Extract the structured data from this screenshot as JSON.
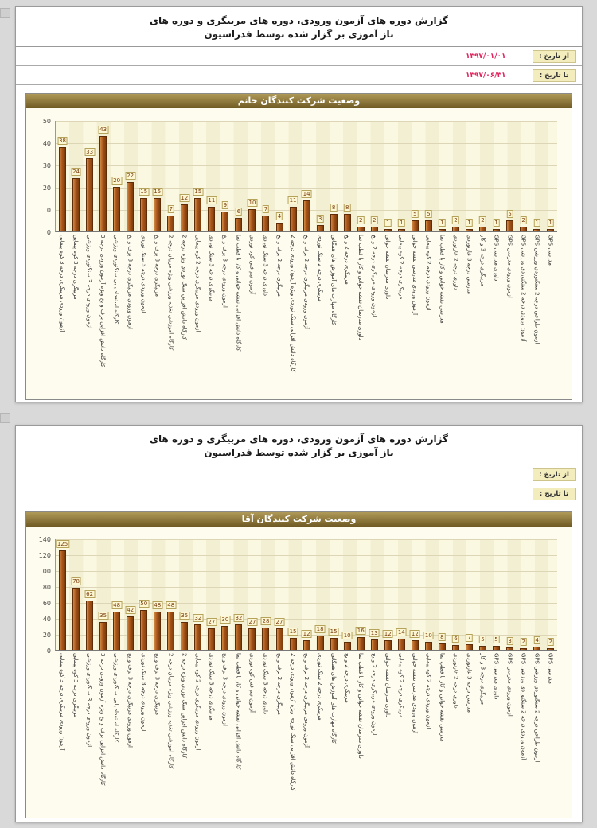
{
  "report": {
    "title_line1": "گزارش دوره های آزمون ورودی، دوره های مربیگری و دوره های",
    "title_line2": "باز آموزی بر گزار شده توسط فدراسیون",
    "from_label": "از تاریخ :",
    "to_label": "تا تاریخ :"
  },
  "pages": [
    {
      "from_date": "۱۳۹۷/۰۱/۰۱",
      "to_date": "۱۳۹۷/۰۶/۳۱"
    },
    {
      "from_date": "",
      "to_date": ""
    }
  ],
  "colors": {
    "bar": "#A9541A",
    "bar_border": "#5E2C06",
    "chart_title_bg": "#7A6127",
    "date_value": "#E0245E",
    "plot_bg": "#FBF8E2"
  },
  "chart_data": [
    {
      "type": "bar",
      "title": "وضعیت شرکت کنندگان خانم",
      "xlabel": "",
      "ylabel": "",
      "ylim": [
        0,
        50
      ],
      "yticks": [
        0,
        10,
        20,
        30,
        40,
        50
      ],
      "grid": true,
      "legend": "none",
      "value_labels": true,
      "categories": [
        "آزمون ورودی مربیگری درجه 3 کوه پیمایی",
        "مربیگری درجه 3 کوه پیمایی",
        "آزمون ورودی درجه 3 سنگنوردی ورزشی",
        "کارگاه دانش افزایی برف و یخ ویژه آزمون ورودی درجه 3",
        "کارگاه استعداد یابی سنگنوردی ورزشی",
        "آزمون ورودی مربیگری درجه 3 برف و یخ",
        "آزمون ورودی درجه 3 سنگ نوردی",
        "مربیگری درجه 3 برف و یخ",
        "کارگاه آموزشی تغذیه ورزشی ویژه مربیان درجه 2",
        "کارگاه دانش افزایی سنگ نوردی ویژه درجه 2",
        "آزمون ورودی مربیگری درجه 2 کوه پیمایی",
        "مربیگری درجه 3 سنگ نوردی",
        "آزمون ورودی درجه 3 برف و یخ",
        "کارگاه دانش افزایی نقشه خوانی و کار با قطب نما",
        "آزمون نیم فنی کوه نوردی",
        "داوری درجه 3 سنگ نوردی",
        "مربیگری درجه 2 برف و یخ",
        "کارگاه دانش افزایی سنگ نوردی ویژه آزمون ورودی درجه 2",
        "آزمون ورودی مربیگری درجه 2 برف و یخ",
        "مربیگری درجه 2 سنگ نوردی",
        "کارگاه مهارت های آموزش های همگانی",
        "مربیگری درجه 2 و یخ",
        "داوری مدرسان نقشه خوانی و کار با قطب نما",
        "آزمون ورودی مربیگری درجه 2 و یخ",
        "داوری مدرسان نقشه خوانی",
        "مربیگری درجه 2 کوه پیمایی",
        "آزمون ورودی مدرسی نقشه خوانی",
        "آزمون ورودی درجه 2 کوه پیمایی",
        "مدرسی نقشه خوانی و کار با قطب نما",
        "داوری درجه 2 غارنوردی",
        "مدرسی درجه 3 غارنوردی",
        "مربیگری درجه 3 و کار",
        "GPS داوری مدرسی",
        "GPS آزمون ورودی مدرسی",
        "GPS آزمون ورودی درجه 2 سنگنوردی ورزشی",
        "GPS آزمون طراحی درجه 2 سنگنوردی ورزشی",
        "GPS مدرسی"
      ],
      "values": [
        38,
        24,
        33,
        43,
        20,
        22,
        15,
        15,
        7,
        12,
        15,
        11,
        9,
        6,
        10,
        7,
        4,
        11,
        14,
        3,
        8,
        8,
        2,
        2,
        1,
        1,
        5,
        5,
        1,
        2,
        1,
        2,
        1,
        5,
        2,
        1,
        1
      ]
    },
    {
      "type": "bar",
      "title": "وضعیت شرکت کنندگان آقا",
      "xlabel": "",
      "ylabel": "",
      "ylim": [
        0,
        140
      ],
      "yticks": [
        0,
        20,
        40,
        60,
        80,
        100,
        120,
        140
      ],
      "grid": true,
      "legend": "none",
      "value_labels": true,
      "categories": [
        "آزمون ورودی مربیگری درجه 3 کوه پیمایی",
        "مربیگری درجه 3 کوه پیمایی",
        "آزمون ورودی درجه 3 سنگنوردی ورزشی",
        "کارگاه دانش افزایی برف و یخ ویژه آزمون ورودی درجه 3",
        "کارگاه استعداد یابی سنگنوردی ورزشی",
        "آزمون ورودی مربیگری درجه 3 برف و یخ",
        "آزمون ورودی درجه 3 سنگ نوردی",
        "مربیگری درجه 3 برف و یخ",
        "کارگاه آموزشی تغذیه ورزشی ویژه مربیان درجه 2",
        "کارگاه دانش افزایی سنگ نوردی ویژه درجه 2",
        "آزمون ورودی مربیگری درجه 2 کوه پیمایی",
        "مربیگری درجه 3 سنگ نوردی",
        "آزمون ورودی درجه 3 برف و یخ",
        "کارگاه دانش افزایی نقشه خوانی و کار با قطب نما",
        "آزمون نیم فنی کوه نوردی",
        "داوری درجه 3 سنگ نوردی",
        "مربیگری درجه 2 برف و یخ",
        "کارگاه دانش افزایی سنگ نوردی ویژه آزمون ورودی درجه 2",
        "آزمون ورودی مربیگری درجه 2 برف و یخ",
        "مربیگری درجه 2 سنگ نوردی",
        "کارگاه مهارت های آموزش های همگانی",
        "مربیگری درجه 2 و یخ",
        "داوری مدرسان نقشه خوانی و کار با قطب نما",
        "آزمون ورودی مربیگری درجه 2 و یخ",
        "داوری مدرسان نقشه خوانی",
        "مربیگری درجه 2 کوه پیمایی",
        "آزمون ورودی مدرسی نقشه خوانی",
        "آزمون ورودی درجه 2 کوه پیمایی",
        "مدرسی نقشه خوانی و کار با قطب نما",
        "داوری درجه 2 غارنوردی",
        "مدرسی درجه 3 غارنوردی",
        "مربیگری درجه 3 و کار",
        "GPS داوری مدرسی",
        "GPS آزمون ورودی مدرسی",
        "GPS آزمون ورودی درجه 2 سنگنوردی ورزشی",
        "GPS آزمون طراحی درجه 2 سنگنوردی ورزشی",
        "GPS مدرسی"
      ],
      "values": [
        125,
        78,
        62,
        35,
        48,
        42,
        50,
        48,
        48,
        35,
        32,
        27,
        30,
        32,
        27,
        28,
        27,
        15,
        12,
        18,
        15,
        10,
        16,
        13,
        12,
        14,
        12,
        10,
        8,
        6,
        7,
        5,
        5,
        3,
        2,
        4,
        2
      ]
    }
  ]
}
